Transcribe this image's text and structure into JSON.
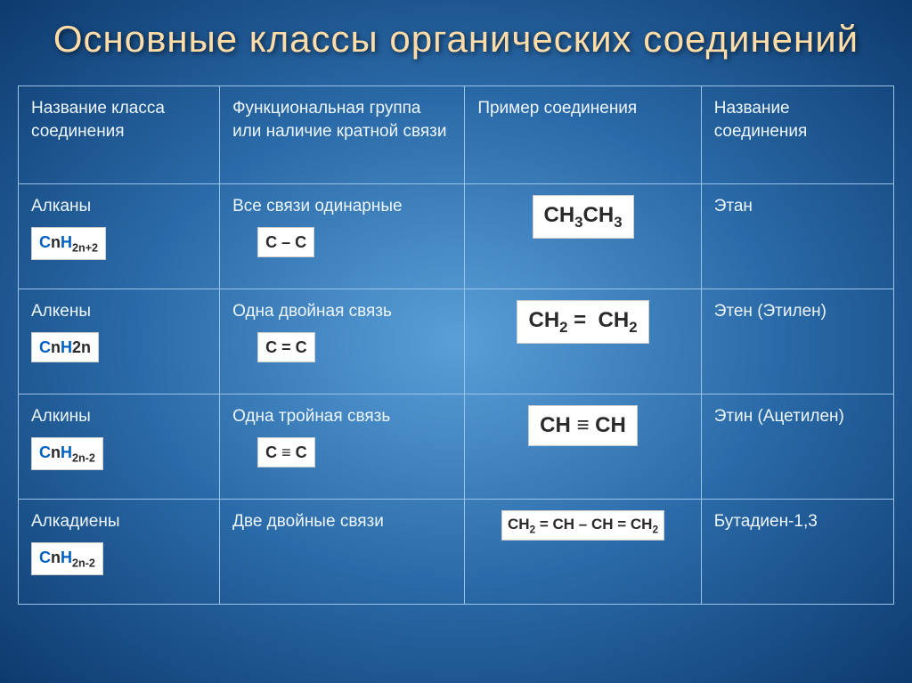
{
  "title": "Основные классы органических соединений",
  "headers": {
    "col1": "Название класса соединения",
    "col2": "Функциональная группа или наличие кратной связи",
    "col3": "Пример соединения",
    "col4": "Название соединения"
  },
  "rows": {
    "alkanes": {
      "class_name": "Алканы",
      "general_formula_html": "<span class='gf'>C</span>n<span class='gf'>H</span><span class='sub'>2n+2</span>",
      "bond_text": "Все связи одинарные",
      "bond_symbol": "C – C",
      "example_html": "CH<span class='sub'>3</span>CH<span class='sub'>3</span>",
      "compound_name": "Этан"
    },
    "alkenes": {
      "class_name": "Алкены",
      "general_formula_html": "<span class='gf'>C</span>n<span class='gf'>H</span>2n",
      "bond_text": "Одна двойная связь",
      "bond_symbol": "C = C",
      "example_html": "CH<span class='sub'>2</span> =&nbsp;&nbsp;CH<span class='sub'>2</span>",
      "compound_name": "Этен (Этилен)"
    },
    "alkynes": {
      "class_name": "Алкины",
      "general_formula_html": "<span class='gf'>C</span>n<span class='gf'>H</span><span class='sub'>2n-2</span>",
      "bond_text": "Одна тройная связь",
      "bond_symbol": "C ≡ C",
      "example_html": "CH ≡ CH",
      "compound_name": "Этин (Ацетилен)"
    },
    "alkadienes": {
      "class_name": "Алкадиены",
      "general_formula_html": "<span class='gf'>C</span>n<span class='gf'>H</span><span class='sub'>2n-2</span>",
      "bond_text": "Две двойные связи",
      "bond_symbol": "",
      "example_html": "CH<span class='sub'>2</span> = CH – CH = CH<span class='sub'>2</span>",
      "compound_name": "Бутадиен-1,3"
    }
  },
  "styling": {
    "title_color": "#ffdca8",
    "title_fontsize": 42,
    "cell_fontsize": 19,
    "cell_text_color": "#eef6ff",
    "border_color": "#9bc4e8",
    "badge_bg": "#ffffff",
    "badge_text_color": "#2a2a2a",
    "gf_color": "#0060c0",
    "bg_gradient_inner": "#5a9fd8",
    "bg_gradient_mid": "#2a6aa8",
    "bg_gradient_outer": "#0d3a6e",
    "col_widths_pct": [
      23,
      28,
      27,
      22
    ]
  }
}
